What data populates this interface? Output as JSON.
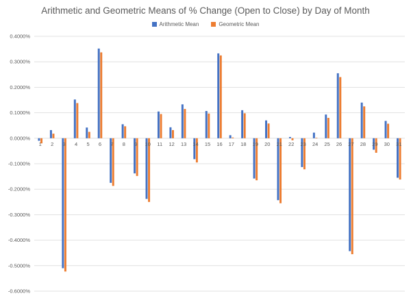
{
  "chart_data": {
    "type": "bar",
    "title": "Arithmetic and Geometric Means of % Change (Open to Close) by Day of Month",
    "xlabel": "",
    "ylabel": "",
    "ylim": [
      -0.6,
      0.4
    ],
    "yticks": [
      "0.4000%",
      "0.3000%",
      "0.2000%",
      "0.1000%",
      "0.0000%",
      "-0.1000%",
      "-0.2000%",
      "-0.3000%",
      "-0.4000%",
      "-0.5000%",
      "-0.6000%"
    ],
    "ytick_values": [
      0.4,
      0.3,
      0.2,
      0.1,
      0.0,
      -0.1,
      -0.2,
      -0.3,
      -0.4,
      -0.5,
      -0.6
    ],
    "grid": true,
    "legend_position": "top",
    "categories": [
      "1",
      "2",
      "3",
      "4",
      "5",
      "6",
      "7",
      "8",
      "9",
      "10",
      "11",
      "12",
      "13",
      "14",
      "15",
      "16",
      "17",
      "18",
      "19",
      "20",
      "21",
      "22",
      "23",
      "24",
      "25",
      "26",
      "27",
      "28",
      "29",
      "30",
      "31"
    ],
    "series": [
      {
        "name": "Arithmetic Mean",
        "color": "#4472C4",
        "values": [
          -0.01,
          0.032,
          -0.51,
          0.152,
          0.042,
          0.352,
          -0.175,
          0.055,
          -0.138,
          -0.238,
          0.105,
          0.043,
          0.133,
          -0.082,
          0.107,
          0.333,
          0.012,
          0.11,
          -0.158,
          0.07,
          -0.243,
          0.005,
          -0.113,
          0.022,
          0.093,
          0.255,
          -0.443,
          0.14,
          -0.045,
          0.068,
          -0.155
        ]
      },
      {
        "name": "Geometric Mean",
        "color": "#ED7D31",
        "values": [
          -0.02,
          0.018,
          -0.523,
          0.138,
          0.025,
          0.337,
          -0.187,
          0.047,
          -0.148,
          -0.25,
          0.095,
          0.032,
          0.115,
          -0.095,
          0.097,
          0.325,
          0.003,
          0.098,
          -0.165,
          0.058,
          -0.255,
          -0.008,
          -0.122,
          0.002,
          0.08,
          0.24,
          -0.455,
          0.125,
          -0.057,
          0.057,
          -0.162
        ]
      }
    ]
  }
}
